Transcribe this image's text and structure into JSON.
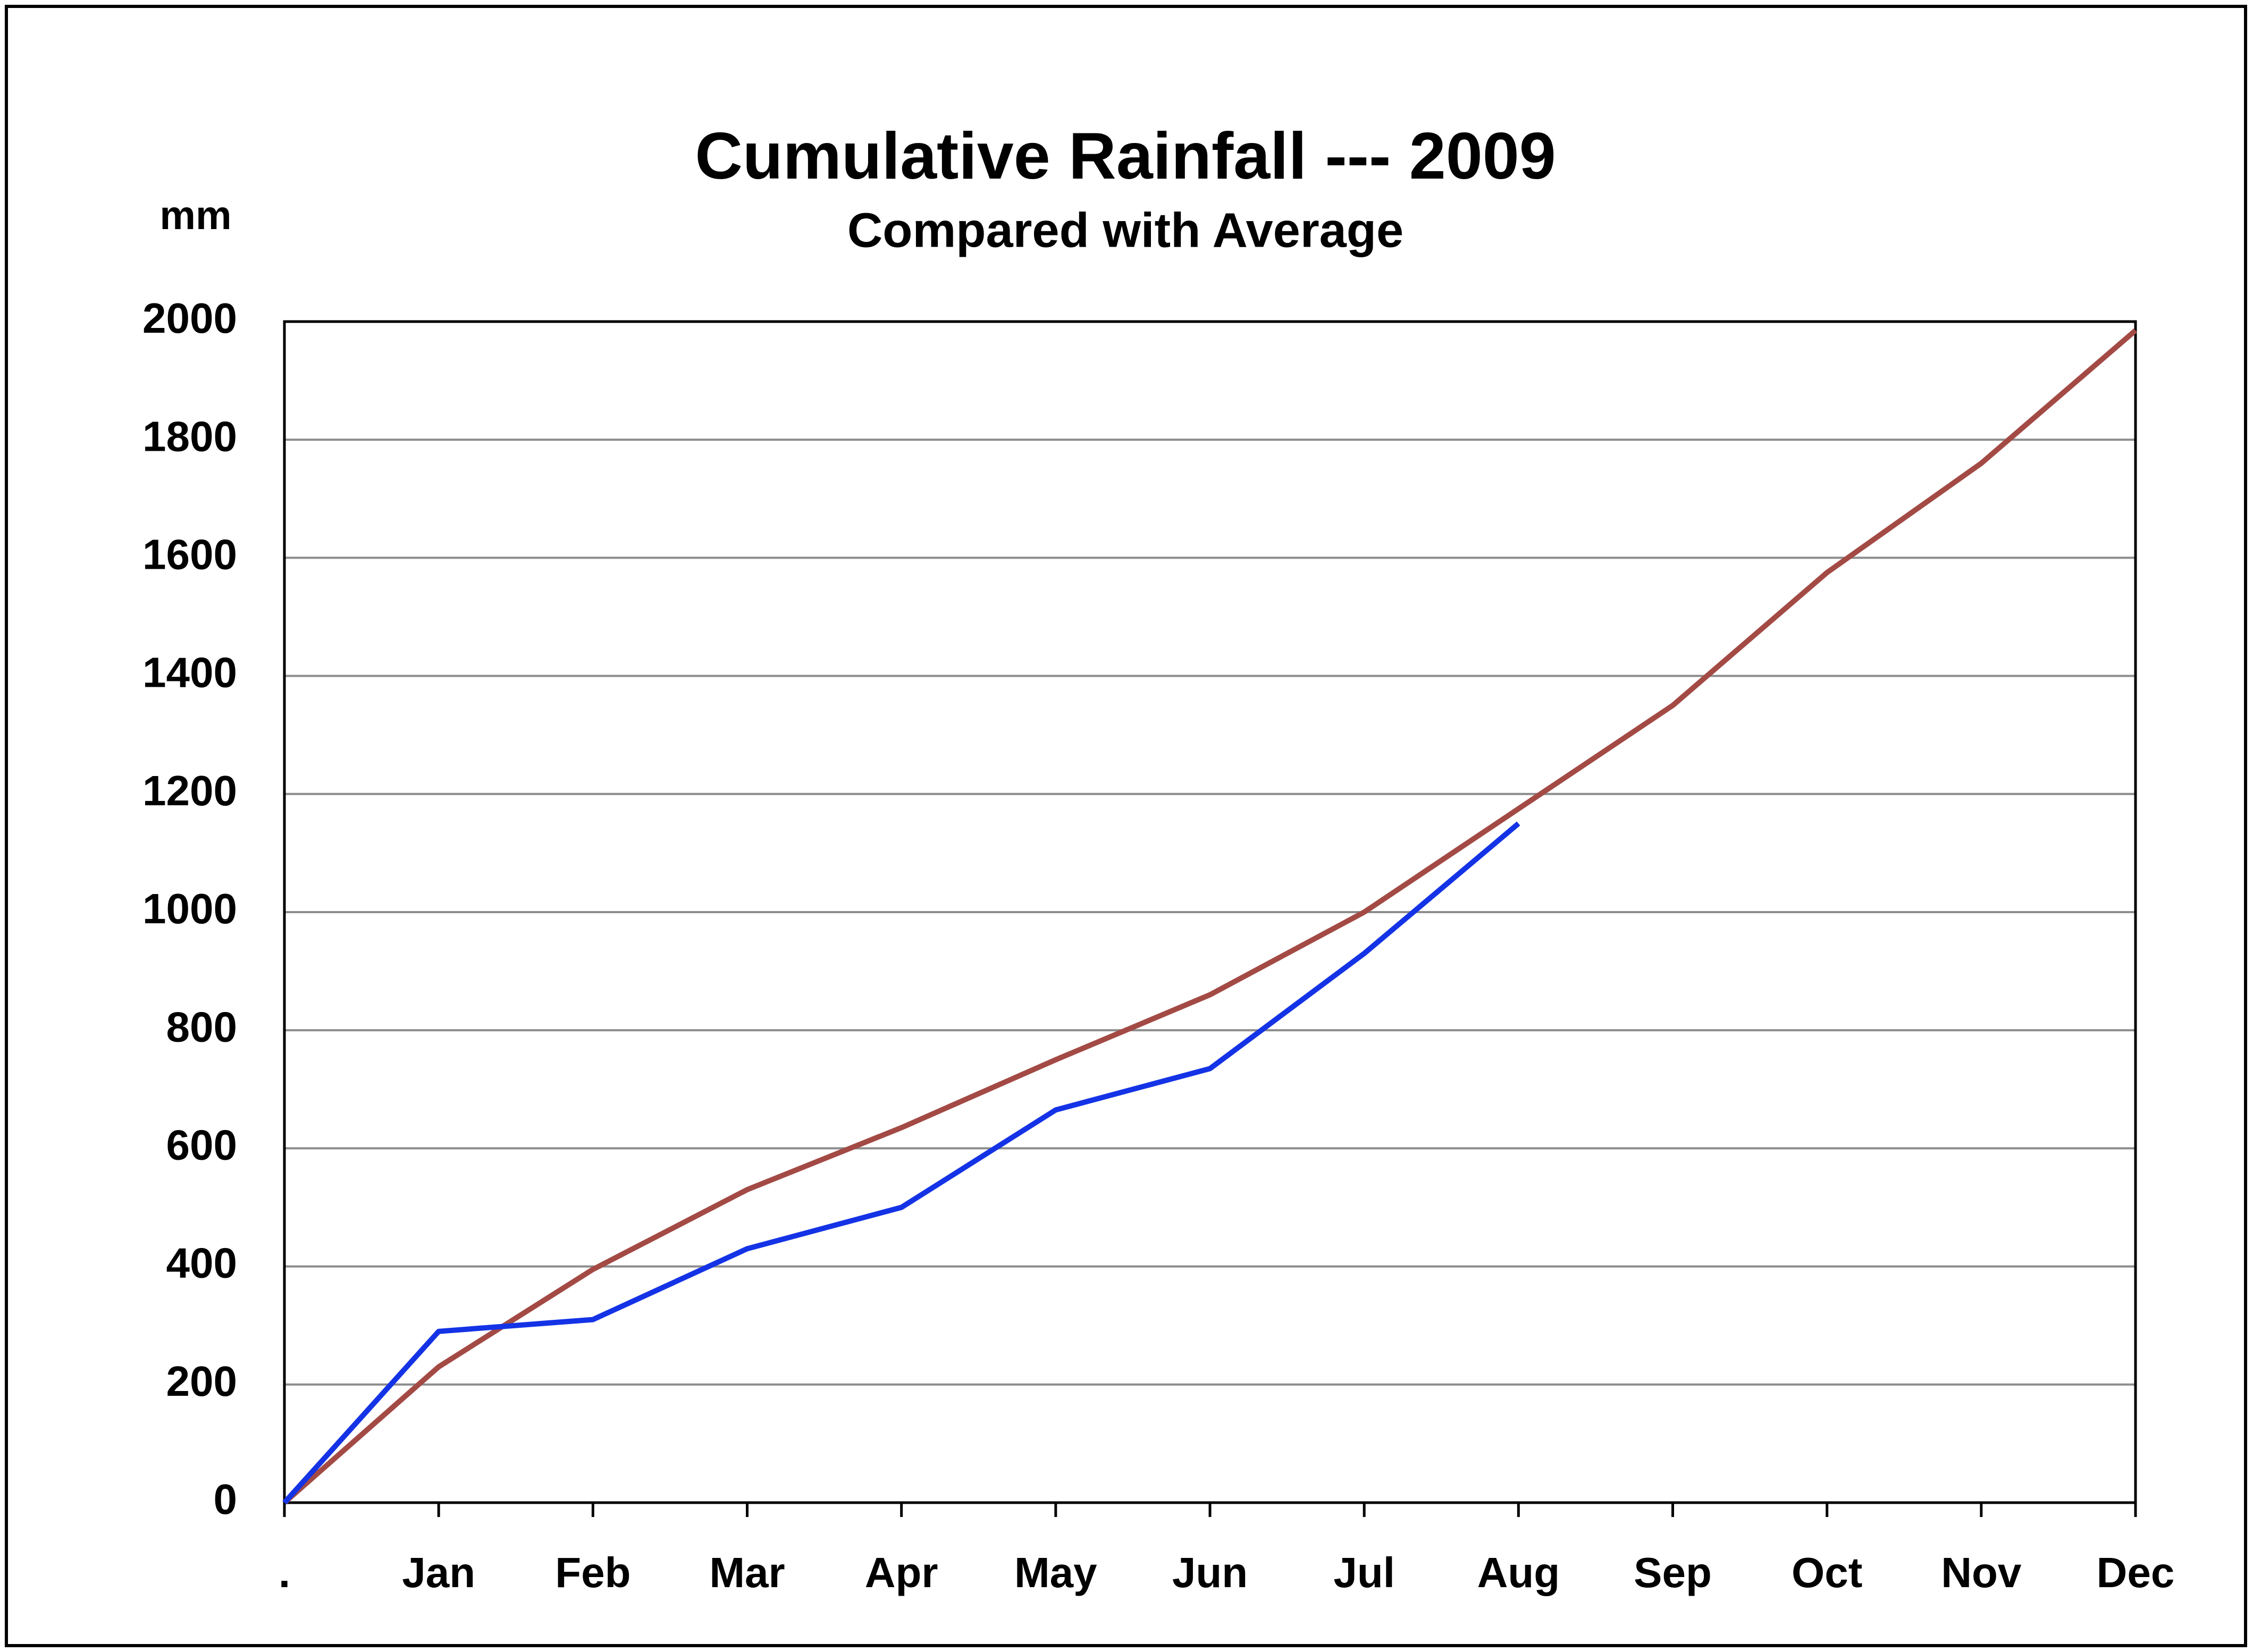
{
  "chart_data": {
    "type": "line",
    "title": "Cumulative Rainfall --- 2009",
    "subtitle": "Compared with Average",
    "y_label": "mm",
    "categories": [
      ".",
      "Jan",
      "Feb",
      "Mar",
      "Apr",
      "May",
      "Jun",
      "Jul",
      "Aug",
      "Sep",
      "Oct",
      "Nov",
      "Dec"
    ],
    "series": [
      {
        "color": "#a34a45",
        "values": [
          0,
          230,
          395,
          530,
          635,
          750,
          860,
          1000,
          1175,
          1350,
          1575,
          1760,
          1985
        ]
      },
      {
        "color": "#1433e6",
        "values": [
          0,
          290,
          310,
          430,
          500,
          665,
          735,
          930,
          1150,
          null,
          null,
          null,
          null
        ]
      }
    ],
    "ylim": [
      0,
      2000
    ],
    "yticks": [
      0,
      200,
      400,
      600,
      800,
      1000,
      1200,
      1400,
      1600,
      1800,
      2000
    ],
    "grid": true
  }
}
